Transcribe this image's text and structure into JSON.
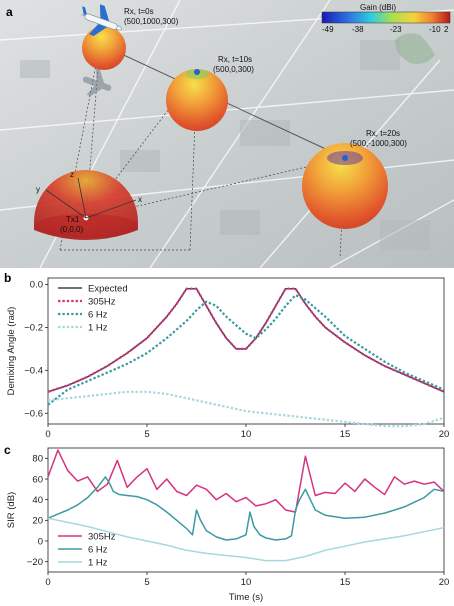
{
  "panel_a": {
    "label": "a",
    "colorbar": {
      "title": "Gain (dBi)",
      "ticks": [
        "-49",
        "-38",
        "-23",
        "-10",
        "2"
      ]
    },
    "rx_labels": [
      {
        "line1": "Rx, t=0s",
        "line2": "(500,1000,300)"
      },
      {
        "line1": "Rx, t=10s",
        "line2": "(500,0,300)"
      },
      {
        "line1": "Rx, t=20s",
        "line2": "(500,-1000,300)"
      }
    ],
    "tx_label": {
      "line1": "Tx1",
      "line2": "(0,0,0)"
    },
    "axes": {
      "x": "x",
      "y": "y",
      "z": "z"
    }
  },
  "chart_data": [
    {
      "panel": "b",
      "type": "line",
      "xlabel": "",
      "ylabel": "Demixing Angle (rad)",
      "xlim": [
        0,
        20
      ],
      "ylim": [
        -0.65,
        0.03
      ],
      "x_ticks": [
        0,
        5,
        10,
        15,
        20
      ],
      "y_ticks": [
        0.0,
        -0.2,
        -0.4,
        -0.6
      ],
      "y_tick_labels": [
        "0.0",
        "−0.2",
        "−0.4",
        "−0.6"
      ],
      "legend": "top-left",
      "series": [
        {
          "name": "Expected",
          "color": "#444444",
          "style": "solid",
          "x": [
            0,
            1,
            2,
            3,
            4,
            5,
            6,
            6.5,
            7,
            7.5,
            8,
            8.5,
            9,
            9.5,
            10,
            10.5,
            11,
            11.5,
            12,
            12.5,
            13,
            13.5,
            14,
            15,
            16,
            17,
            18,
            19,
            20
          ],
          "y": [
            -0.5,
            -0.47,
            -0.43,
            -0.38,
            -0.32,
            -0.25,
            -0.15,
            -0.09,
            -0.02,
            -0.02,
            -0.1,
            -0.18,
            -0.25,
            -0.3,
            -0.3,
            -0.25,
            -0.18,
            -0.1,
            -0.02,
            -0.02,
            -0.09,
            -0.15,
            -0.2,
            -0.27,
            -0.33,
            -0.38,
            -0.42,
            -0.46,
            -0.5
          ]
        },
        {
          "name": "305Hz",
          "color": "#d6337f",
          "style": "dotted",
          "x": [
            0,
            1,
            2,
            3,
            4,
            5,
            6,
            6.5,
            7,
            7.5,
            8,
            8.5,
            9,
            9.5,
            10,
            10.5,
            11,
            11.5,
            12,
            12.5,
            13,
            13.5,
            14,
            15,
            16,
            17,
            18,
            19,
            20
          ],
          "y": [
            -0.5,
            -0.47,
            -0.43,
            -0.38,
            -0.32,
            -0.25,
            -0.15,
            -0.09,
            -0.02,
            -0.02,
            -0.1,
            -0.18,
            -0.25,
            -0.3,
            -0.3,
            -0.25,
            -0.18,
            -0.1,
            -0.02,
            -0.02,
            -0.09,
            -0.15,
            -0.2,
            -0.27,
            -0.33,
            -0.38,
            -0.42,
            -0.46,
            -0.5
          ]
        },
        {
          "name": "6 Hz",
          "color": "#3b9aa3",
          "style": "dotted",
          "x": [
            0,
            1,
            2,
            3,
            4,
            5,
            6,
            7,
            7.5,
            8,
            8.5,
            9,
            9.5,
            10,
            10.5,
            11,
            11.5,
            12,
            12.5,
            13,
            13.5,
            14,
            15,
            16,
            17,
            18,
            19,
            20
          ],
          "y": [
            -0.56,
            -0.49,
            -0.45,
            -0.41,
            -0.37,
            -0.32,
            -0.25,
            -0.17,
            -0.12,
            -0.08,
            -0.1,
            -0.15,
            -0.19,
            -0.23,
            -0.25,
            -0.21,
            -0.16,
            -0.1,
            -0.05,
            -0.07,
            -0.11,
            -0.15,
            -0.24,
            -0.3,
            -0.36,
            -0.41,
            -0.45,
            -0.49
          ]
        },
        {
          "name": "1 Hz",
          "color": "#a6d8dc",
          "style": "dotted",
          "x": [
            0,
            1,
            2,
            3,
            4,
            5,
            6,
            7,
            8,
            9,
            10,
            11,
            12,
            13,
            14,
            15,
            16,
            17,
            18,
            19,
            20
          ],
          "y": [
            -0.54,
            -0.53,
            -0.52,
            -0.51,
            -0.5,
            -0.5,
            -0.51,
            -0.53,
            -0.55,
            -0.57,
            -0.59,
            -0.6,
            -0.61,
            -0.62,
            -0.63,
            -0.64,
            -0.65,
            -0.66,
            -0.66,
            -0.65,
            -0.62
          ]
        }
      ]
    },
    {
      "panel": "c",
      "type": "line",
      "xlabel": "Time (s)",
      "ylabel": "SIR (dB)",
      "xlim": [
        0,
        20
      ],
      "ylim": [
        -30,
        90
      ],
      "x_ticks": [
        0,
        5,
        10,
        15,
        20
      ],
      "y_ticks": [
        80,
        60,
        40,
        20,
        0,
        -20
      ],
      "y_tick_labels": [
        "80",
        "60",
        "40",
        "20",
        "0",
        "−20"
      ],
      "legend": "bottom-left",
      "series": [
        {
          "name": "305Hz",
          "color": "#d6337f",
          "style": "solid",
          "x": [
            0,
            0.5,
            1,
            1.5,
            2,
            2.5,
            3,
            3.5,
            4,
            4.5,
            5,
            5.5,
            6,
            6.5,
            7,
            7.5,
            8,
            8.5,
            9,
            9.5,
            10,
            10.5,
            11,
            11.5,
            12,
            12.5,
            13,
            13.5,
            14,
            14.5,
            15,
            15.5,
            16,
            16.5,
            17,
            17.5,
            18,
            18.5,
            19,
            19.5,
            20
          ],
          "y": [
            62,
            88,
            68,
            58,
            62,
            48,
            55,
            78,
            52,
            62,
            70,
            50,
            60,
            48,
            44,
            54,
            50,
            40,
            46,
            38,
            42,
            34,
            36,
            40,
            30,
            28,
            82,
            44,
            47,
            46,
            56,
            48,
            60,
            52,
            45,
            62,
            55,
            58,
            55,
            57,
            48
          ]
        },
        {
          "name": "6 Hz",
          "color": "#3b9aa3",
          "style": "solid",
          "x": [
            0,
            0.5,
            1,
            1.5,
            2,
            2.5,
            2.9,
            3.1,
            3.3,
            3.6,
            4,
            4.5,
            5,
            5.5,
            6,
            6.5,
            7,
            7.3,
            7.5,
            7.7,
            8,
            8.5,
            9,
            9.5,
            10,
            10.2,
            10.4,
            10.7,
            11,
            11.5,
            12,
            12.3,
            12.5,
            12.7,
            13,
            13.5,
            14,
            15,
            16,
            17,
            18,
            19,
            19.5,
            20
          ],
          "y": [
            22,
            26,
            30,
            35,
            42,
            52,
            62,
            56,
            48,
            45,
            44,
            43,
            40,
            35,
            28,
            20,
            12,
            6,
            30,
            20,
            10,
            4,
            1,
            2,
            6,
            28,
            14,
            6,
            3,
            1,
            2,
            5,
            30,
            40,
            50,
            30,
            25,
            22,
            23,
            27,
            33,
            42,
            50,
            48
          ]
        },
        {
          "name": "1 Hz",
          "color": "#a6d8dc",
          "style": "solid",
          "x": [
            0,
            1,
            2,
            3,
            4,
            5,
            6,
            7,
            8,
            9,
            10,
            11,
            12,
            13,
            14,
            15,
            16,
            17,
            18,
            19,
            20
          ],
          "y": [
            22,
            18,
            14,
            9,
            4,
            0,
            -4,
            -9,
            -12,
            -14,
            -16,
            -19,
            -19,
            -15,
            -9,
            -5,
            -1,
            2,
            5,
            9,
            13
          ]
        }
      ]
    }
  ]
}
